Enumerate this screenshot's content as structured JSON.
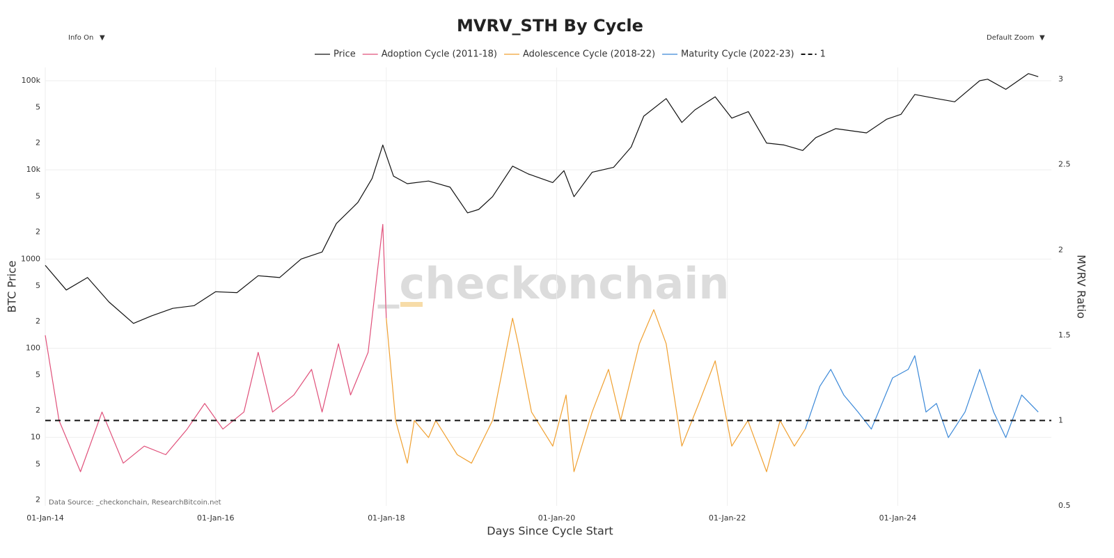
{
  "chart_data": {
    "type": "line",
    "title": "MVRV_STH By Cycle",
    "controls": [
      "Info On",
      "Default Zoom"
    ],
    "watermark": "_checkonchain",
    "source": "Data Source: _checkonchain, ResearchBitcoin.net",
    "xlabel": "Days Since Cycle Start",
    "ylabel": "BTC Price",
    "y2label": "MVRV Ratio",
    "ylog": true,
    "grid": true,
    "legend": "top",
    "xlim": [
      "2014-01-01",
      "2025-10-20"
    ],
    "xticks": [
      {
        "value": "2014-01-01",
        "label": "01-Jan-14"
      },
      {
        "value": "2016-01-01",
        "label": "01-Jan-16"
      },
      {
        "value": "2018-01-01",
        "label": "01-Jan-18"
      },
      {
        "value": "2020-01-01",
        "label": "01-Jan-20"
      },
      {
        "value": "2022-01-01",
        "label": "01-Jan-22"
      },
      {
        "value": "2024-01-01",
        "label": "01-Jan-24"
      }
    ],
    "ylim": [
      1.71,
      140600
    ],
    "yticks": [
      {
        "value": 100000,
        "label": "100k"
      },
      {
        "value": 50000,
        "label": "5"
      },
      {
        "value": 20000,
        "label": "2"
      },
      {
        "value": 10000,
        "label": "10k"
      },
      {
        "value": 5000,
        "label": "5"
      },
      {
        "value": 2000,
        "label": "2"
      },
      1000,
      {
        "value": 500,
        "label": "5"
      },
      {
        "value": 200,
        "label": "2"
      },
      100,
      {
        "value": 50,
        "label": "5"
      },
      {
        "value": 20,
        "label": "2"
      },
      10,
      5,
      2
    ],
    "y2lim": [
      0.5,
      3.07
    ],
    "y2ticks": [
      0.5,
      1,
      1.5,
      2,
      2.5,
      3
    ],
    "series": [
      {
        "name": "Price",
        "color": "#111111",
        "x": [
          "2014-01-01",
          "2014-04-01",
          "2014-07-01",
          "2014-10-01",
          "2015-01-14",
          "2015-04-01",
          "2015-07-01",
          "2015-10-01",
          "2016-01-01",
          "2016-04-01",
          "2016-07-01",
          "2016-10-01",
          "2017-01-01",
          "2017-04-01",
          "2017-06-01",
          "2017-09-01",
          "2017-11-01",
          "2017-12-17",
          "2018-02-01",
          "2018-04-01",
          "2018-07-01",
          "2018-10-01",
          "2018-12-15",
          "2019-02-01",
          "2019-04-01",
          "2019-06-26",
          "2019-09-01",
          "2019-12-15",
          "2020-02-01",
          "2020-03-15",
          "2020-06-01",
          "2020-09-01",
          "2020-11-15",
          "2021-01-08",
          "2021-04-14",
          "2021-06-20",
          "2021-08-15",
          "2021-11-10",
          "2022-01-20",
          "2022-04-01",
          "2022-06-18",
          "2022-09-01",
          "2022-11-20",
          "2023-01-15",
          "2023-04-10",
          "2023-08-20",
          "2023-11-15",
          "2024-01-15",
          "2024-03-14",
          "2024-06-01",
          "2024-09-01",
          "2024-12-17",
          "2025-01-20",
          "2025-04-08",
          "2025-07-14",
          "2025-08-25"
        ],
        "values": [
          850,
          450,
          620,
          330,
          190,
          230,
          280,
          300,
          430,
          420,
          650,
          620,
          1000,
          1200,
          2500,
          4300,
          8000,
          19000,
          8500,
          7000,
          7500,
          6400,
          3300,
          3600,
          5000,
          11000,
          9000,
          7200,
          9800,
          5000,
          9400,
          10700,
          18000,
          40000,
          63000,
          34000,
          47000,
          66000,
          38000,
          45000,
          20000,
          19000,
          16500,
          23000,
          29000,
          26000,
          37000,
          42000,
          70000,
          64000,
          58000,
          100000,
          104000,
          80000,
          120000,
          111000
        ]
      },
      {
        "name": "Adoption Cycle (2011-18)",
        "color": "#e0507a",
        "axis": "y2",
        "x": [
          "2014-01-01",
          "2014-03-01",
          "2014-06-01",
          "2014-09-01",
          "2014-12-01",
          "2015-03-01",
          "2015-06-01",
          "2015-09-01",
          "2015-11-15",
          "2016-02-01",
          "2016-05-01",
          "2016-07-01",
          "2016-09-01",
          "2016-12-01",
          "2017-02-15",
          "2017-04-01",
          "2017-06-10",
          "2017-08-01",
          "2017-10-15",
          "2017-12-17",
          "2018-01-01"
        ],
        "values": [
          1.5,
          1.0,
          0.7,
          1.05,
          0.75,
          0.85,
          0.8,
          0.95,
          1.1,
          0.95,
          1.05,
          1.4,
          1.05,
          1.15,
          1.3,
          1.05,
          1.45,
          1.15,
          1.4,
          2.15,
          1.6
        ]
      },
      {
        "name": "Adolescence Cycle (2018-22)",
        "color": "#f0a030",
        "axis": "y2",
        "x": [
          "2018-01-01",
          "2018-02-10",
          "2018-04-01",
          "2018-05-01",
          "2018-07-01",
          "2018-08-01",
          "2018-11-01",
          "2019-01-01",
          "2019-04-01",
          "2019-06-26",
          "2019-07-20",
          "2019-09-15",
          "2019-12-15",
          "2020-02-10",
          "2020-03-15",
          "2020-06-01",
          "2020-08-10",
          "2020-10-01",
          "2020-12-20",
          "2021-02-20",
          "2021-04-14",
          "2021-06-20",
          "2021-09-01",
          "2021-11-10",
          "2022-01-20",
          "2022-03-30",
          "2022-06-18",
          "2022-08-15",
          "2022-10-15",
          "2022-12-01"
        ],
        "values": [
          1.6,
          1.0,
          0.75,
          1.0,
          0.9,
          1.0,
          0.8,
          0.75,
          1.0,
          1.6,
          1.45,
          1.05,
          0.85,
          1.15,
          0.7,
          1.05,
          1.3,
          1.0,
          1.45,
          1.65,
          1.45,
          0.85,
          1.1,
          1.35,
          0.85,
          1.0,
          0.7,
          1.0,
          0.85,
          0.95
        ]
      },
      {
        "name": "Maturity Cycle (2022-23)",
        "color": "#3a88d8",
        "axis": "y2",
        "x": [
          "2022-12-01",
          "2023-02-01",
          "2023-03-20",
          "2023-05-15",
          "2023-07-15",
          "2023-09-10",
          "2023-12-10",
          "2024-02-15",
          "2024-03-14",
          "2024-05-01",
          "2024-06-15",
          "2024-08-05",
          "2024-10-15",
          "2024-12-17",
          "2025-02-15",
          "2025-04-08",
          "2025-06-15",
          "2025-08-25"
        ],
        "values": [
          0.95,
          1.2,
          1.3,
          1.15,
          1.05,
          0.95,
          1.25,
          1.3,
          1.38,
          1.05,
          1.1,
          0.9,
          1.05,
          1.3,
          1.05,
          0.9,
          1.15,
          1.05
        ]
      },
      {
        "name": "1",
        "color": "#111111",
        "axis": "y2",
        "dash": true,
        "value": 1
      }
    ]
  }
}
